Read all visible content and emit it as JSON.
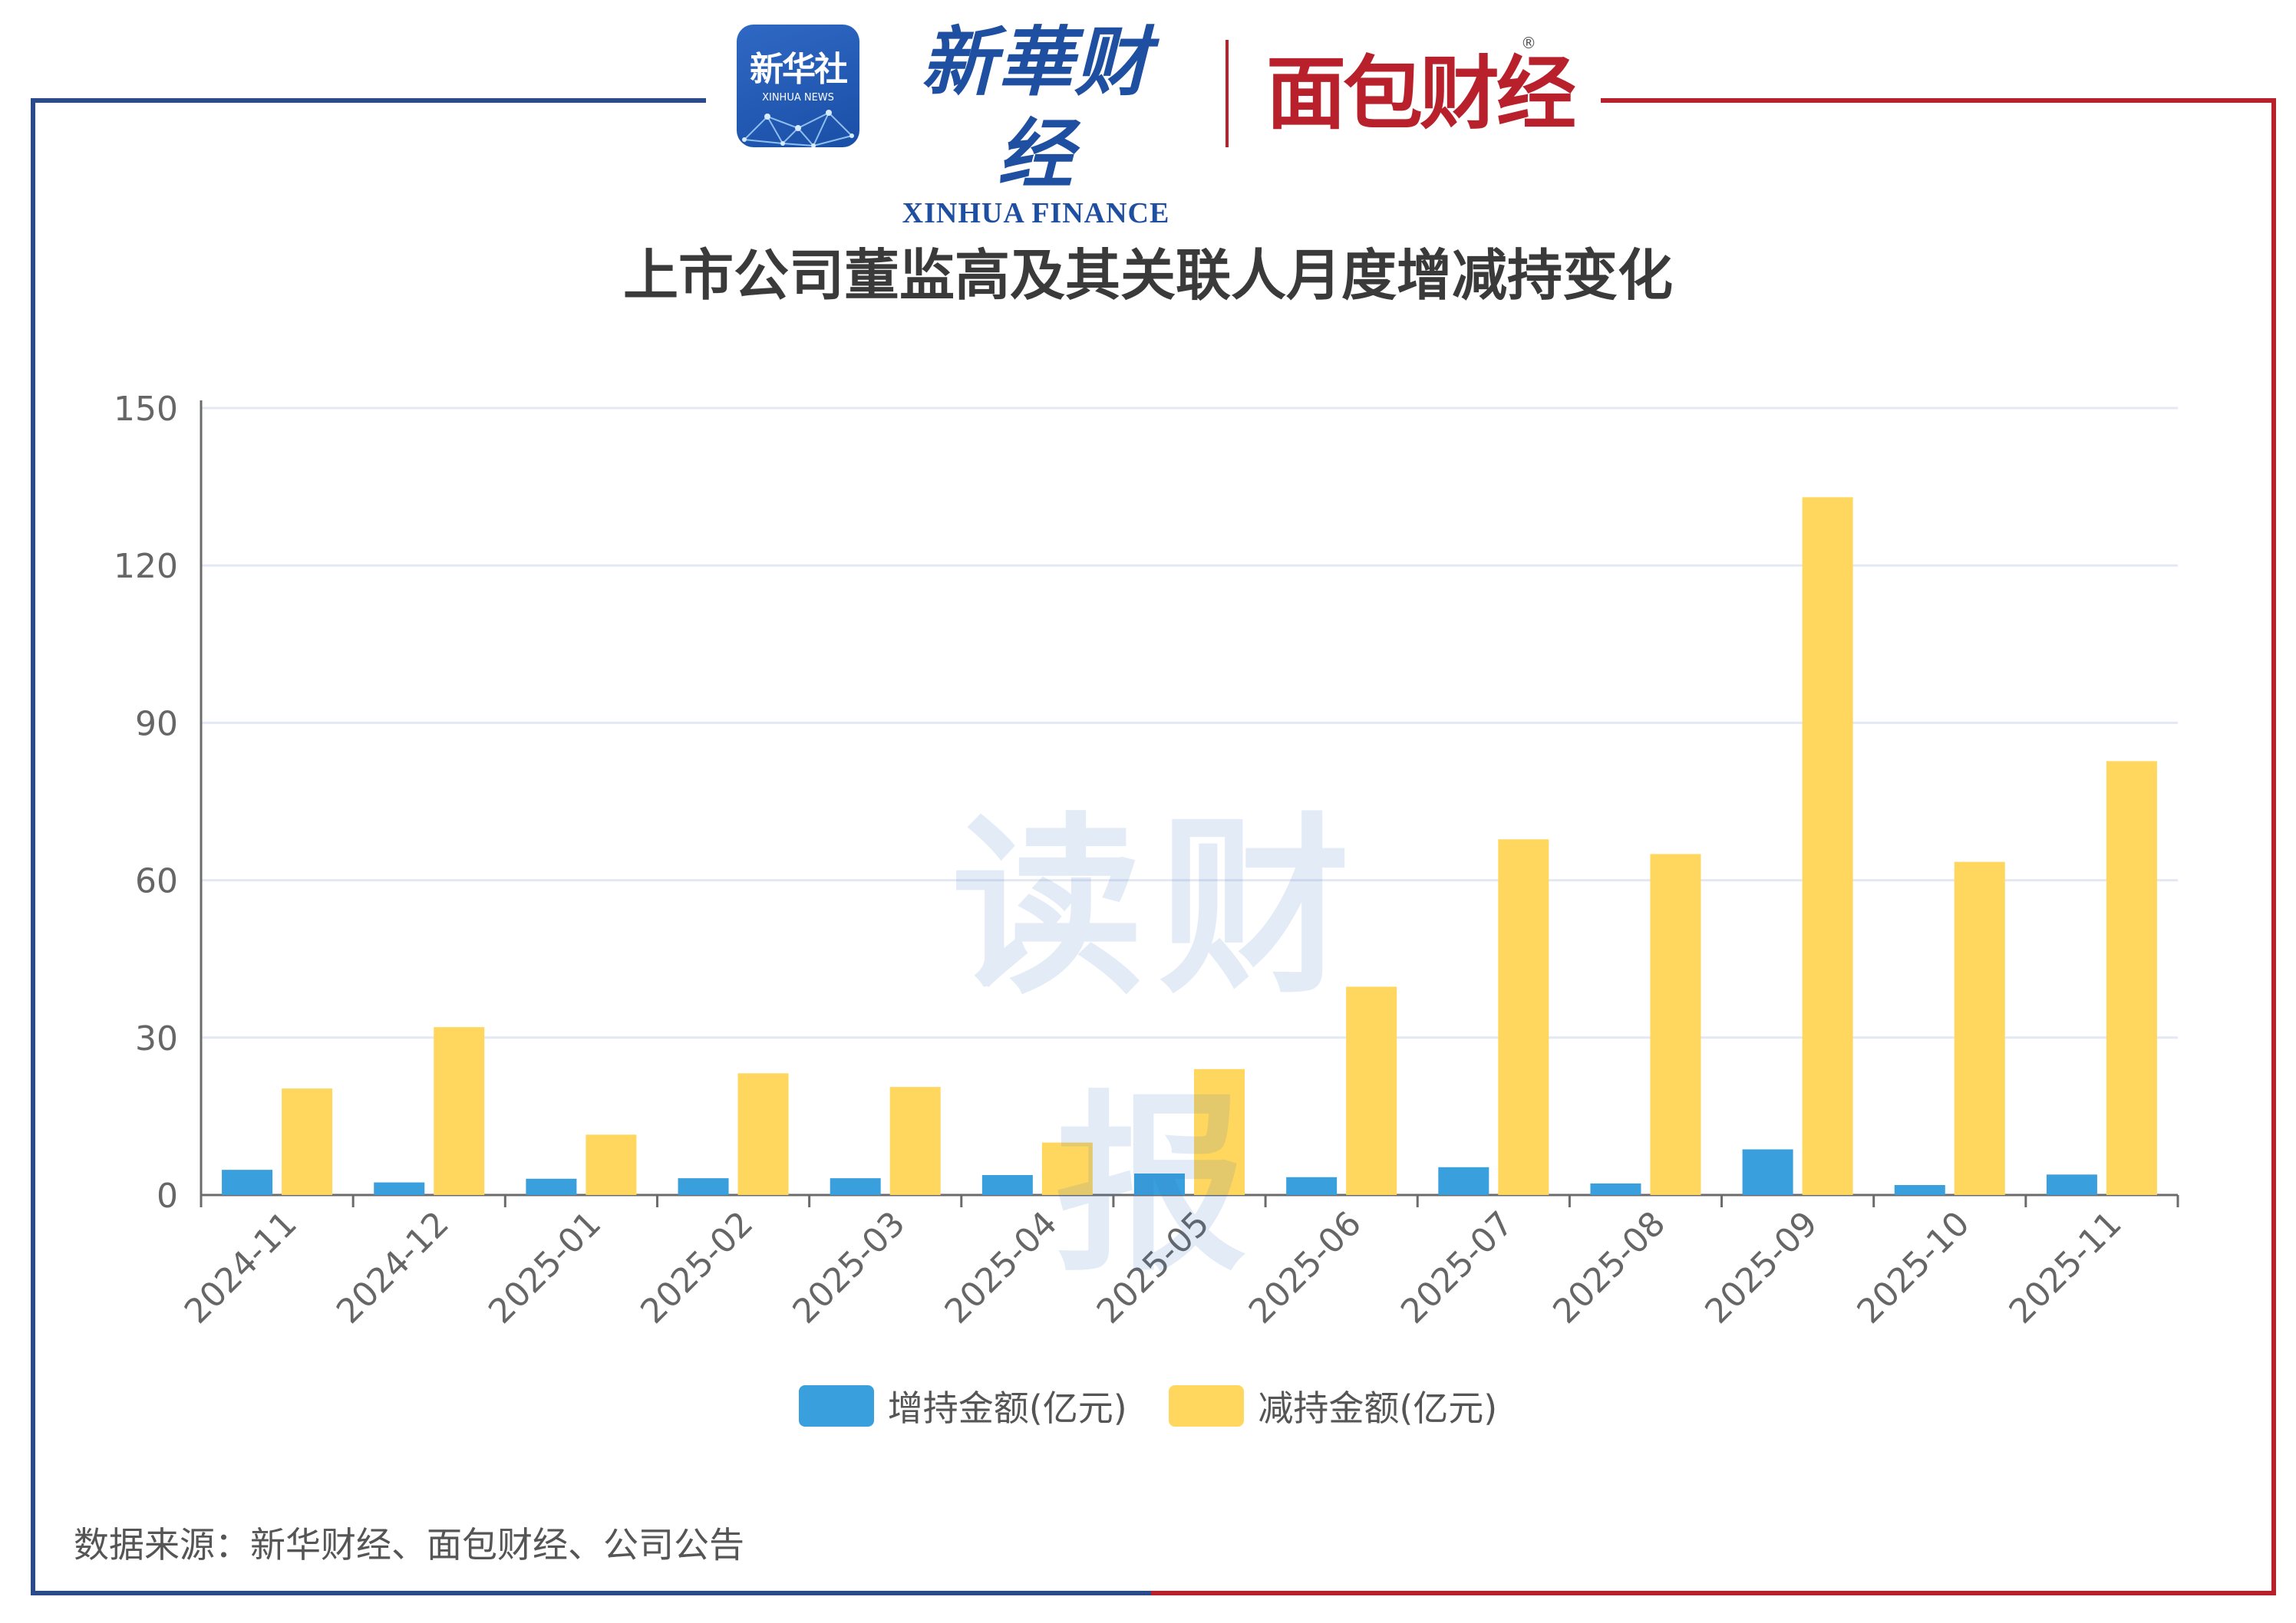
{
  "branding": {
    "xinhua_news_cn": "新华社",
    "xinhua_news_en": "XINHUA NEWS",
    "xinhua_finance_cn": "新華财经",
    "xinhua_finance_en": "XINHUA FINANCE",
    "mianbao_cn": "面包财经",
    "mianbao_reg": "®"
  },
  "watermark": "读财报",
  "source_note": "数据来源：新华财经、面包财经、公司公告",
  "colors": {
    "increase": "#3aa0dd",
    "decrease": "#ffd75e",
    "frame_blue": "#2b4a8b",
    "frame_red": "#b8212c"
  },
  "chart_data": {
    "type": "bar",
    "title": "上市公司董监高及其关联人月度增减持变化",
    "xlabel": "",
    "ylabel": "",
    "ylim": [
      0,
      150
    ],
    "yticks": [
      0,
      30,
      60,
      90,
      120,
      150
    ],
    "grid": true,
    "legend_position": "bottom",
    "categories": [
      "2024-11",
      "2024-12",
      "2025-01",
      "2025-02",
      "2025-03",
      "2025-04",
      "2025-05",
      "2025-06",
      "2025-07",
      "2025-08",
      "2025-09",
      "2025-10",
      "2025-11"
    ],
    "series": [
      {
        "name": "增持金额(亿元)",
        "values": [
          4.8,
          2.4,
          3.1,
          3.2,
          3.2,
          3.8,
          4.1,
          3.4,
          5.3,
          2.2,
          8.7,
          1.9,
          3.9
        ]
      },
      {
        "name": "减持金额(亿元)",
        "values": [
          20.3,
          32.0,
          11.5,
          23.2,
          20.6,
          10.0,
          24.0,
          39.7,
          67.8,
          65.0,
          133.0,
          63.5,
          82.7
        ]
      }
    ]
  }
}
